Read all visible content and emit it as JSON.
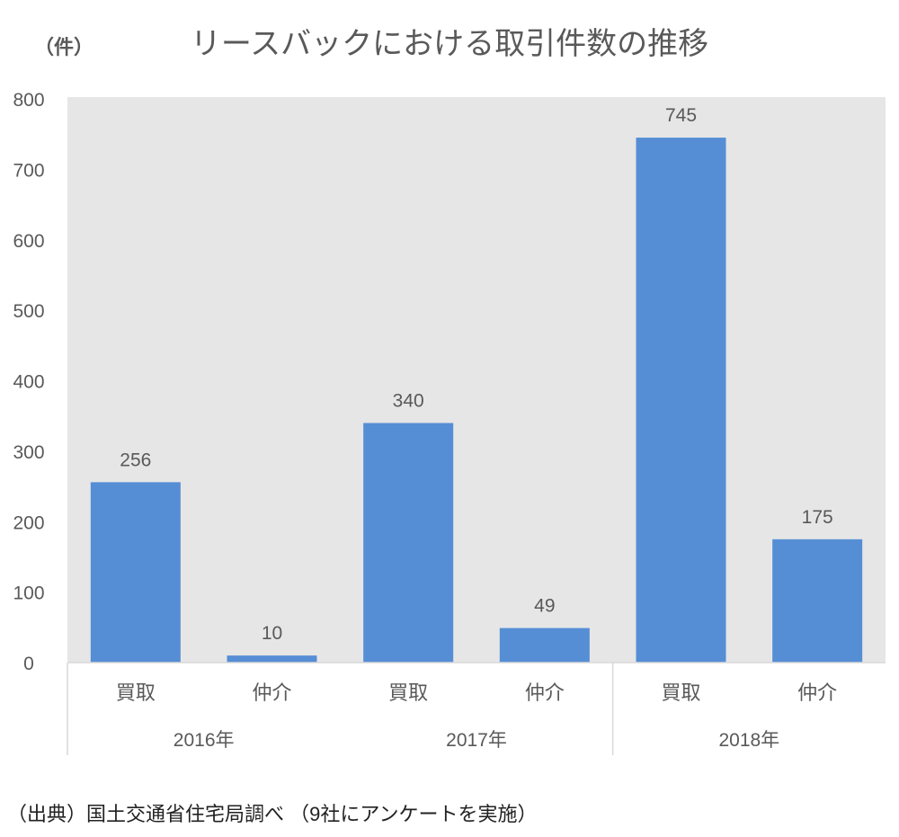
{
  "chart_data": {
    "type": "bar",
    "title": "リースバックにおける取引件数の推移",
    "ylabel": "（件）",
    "ylim": [
      0,
      800
    ],
    "yticks": [
      0,
      100,
      200,
      300,
      400,
      500,
      600,
      700,
      800
    ],
    "grid": false,
    "groups": [
      "2016年",
      "2017年",
      "2018年"
    ],
    "categories": [
      "買取",
      "仲介",
      "買取",
      "仲介",
      "買取",
      "仲介"
    ],
    "values": [
      256,
      10,
      340,
      49,
      745,
      175
    ],
    "bar_color": "#558ed5",
    "plot_background": "#e6e6e6",
    "source": "（出典）国土交通省住宅局調べ （9社にアンケートを実施）"
  }
}
